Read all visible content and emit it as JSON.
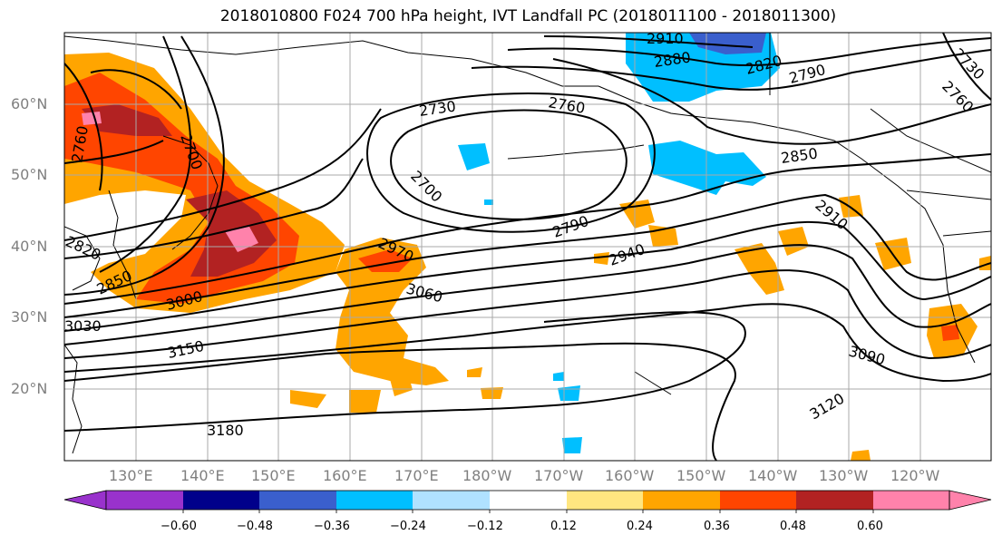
{
  "title": "2018010800 F024 700 hPa height, IVT Landfall PC (2018011100 - 2018011300)",
  "lat_labels": [
    "60°N",
    "50°N",
    "40°N",
    "30°N",
    "20°N"
  ],
  "lon_labels": [
    "130°E",
    "140°E",
    "150°E",
    "160°E",
    "170°E",
    "180°W",
    "170°W",
    "160°W",
    "150°W",
    "140°W",
    "130°W",
    "120°W"
  ],
  "contour_labels": [
    "2910",
    "2880",
    "2820",
    "2790",
    "2760",
    "2730",
    "2730",
    "2760",
    "2700",
    "2790",
    "2940",
    "2850",
    "2910",
    "2970",
    "3060",
    "3000",
    "3090",
    "3120",
    "3150",
    "3180",
    "2700",
    "2820",
    "2760",
    "3030",
    "2850"
  ],
  "colorbar": {
    "tick_labels": [
      "−0.60",
      "−0.48",
      "−0.36",
      "−0.24",
      "−0.12",
      "0.12",
      "0.24",
      "0.36",
      "0.48",
      "0.60"
    ],
    "colors": [
      "#9932cc",
      "#00008b",
      "#3a5fcd",
      "#00bfff",
      "#b0e2ff",
      "#ffffff",
      "#ffe680",
      "#ffa500",
      "#ff4500",
      "#b22222",
      "#ff82ab"
    ]
  }
}
